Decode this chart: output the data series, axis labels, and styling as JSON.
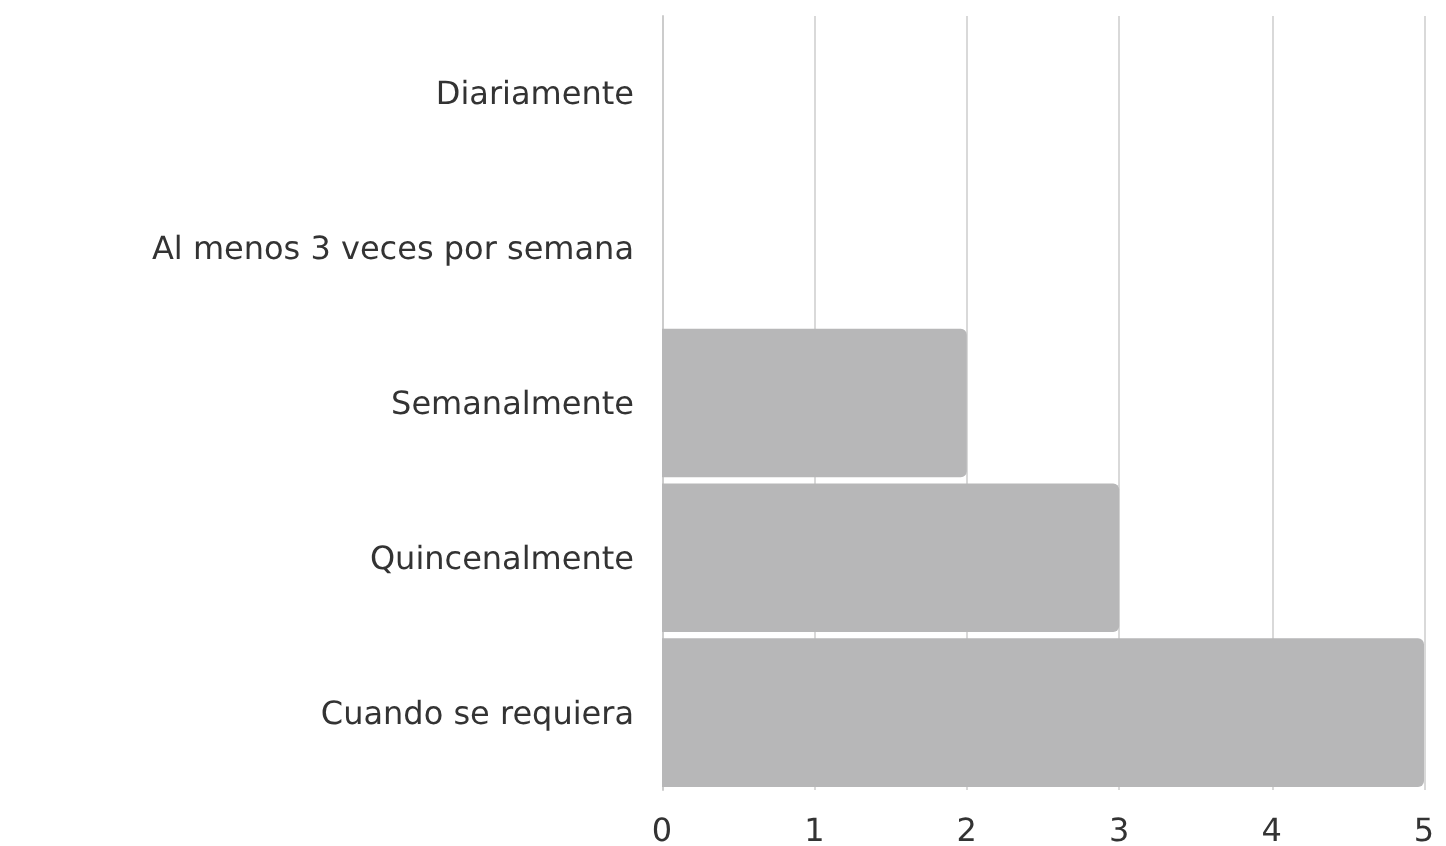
{
  "chart_data": {
    "type": "bar",
    "orientation": "horizontal",
    "categories": [
      "Diariamente",
      "Al menos 3 veces por semana",
      "Semanalmente",
      "Quincenalmente",
      "Cuando se requiera"
    ],
    "values": [
      0,
      0,
      2,
      3,
      5
    ],
    "color": "#b7b7b8",
    "xlim": [
      0,
      5
    ],
    "xticks": [
      0,
      1,
      2,
      3,
      4,
      5
    ],
    "grid": "x"
  }
}
